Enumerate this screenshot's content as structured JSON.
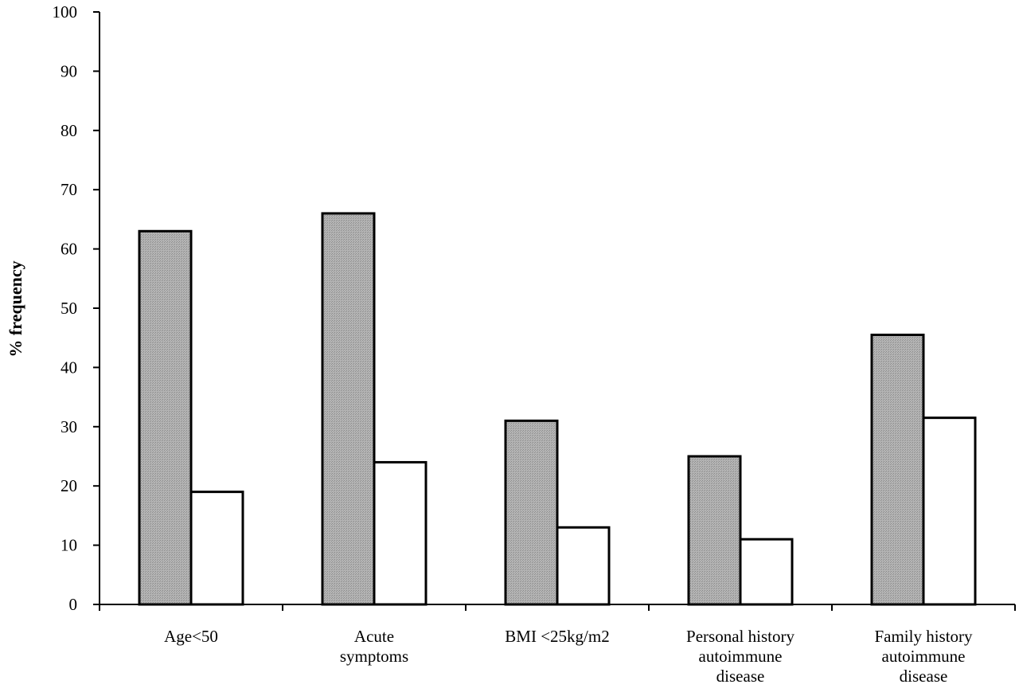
{
  "chart_data": {
    "type": "bar",
    "title": "",
    "xlabel": "",
    "ylabel": "% frequency",
    "ylim": [
      0,
      100
    ],
    "yticks": [
      0,
      10,
      20,
      30,
      40,
      50,
      60,
      70,
      80,
      90,
      100
    ],
    "categories": [
      [
        "Age<50"
      ],
      [
        "Acute",
        "symptoms"
      ],
      [
        "BMI <25kg/m2"
      ],
      [
        "Personal history",
        "autoimmune",
        "disease"
      ],
      [
        "Family history",
        "autoimmune",
        "disease"
      ]
    ],
    "series": [
      {
        "values": [
          63,
          66,
          31,
          25,
          45.5
        ],
        "color": "#a9a9a9"
      },
      {
        "values": [
          19,
          24,
          13,
          11,
          31.5
        ],
        "color": "#ffffff"
      }
    ],
    "grid": false,
    "legend": "none"
  }
}
